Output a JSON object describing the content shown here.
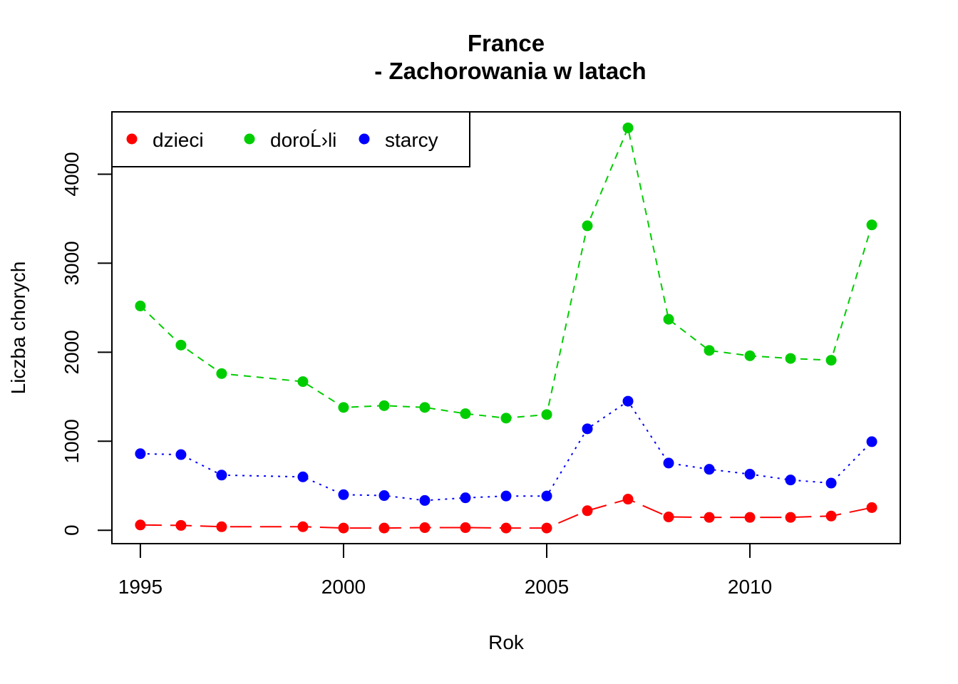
{
  "chart_data": {
    "type": "line",
    "title_line1": "France",
    "title_line2": "- Zachorowania w latach",
    "xlabel": "Rok",
    "ylabel": "Liczba chorych",
    "xlim": [
      1994.3,
      2013.7
    ],
    "ylim": [
      -150,
      4700
    ],
    "x_ticks": [
      1995,
      2000,
      2005,
      2010
    ],
    "y_ticks": [
      0,
      1000,
      2000,
      3000,
      4000
    ],
    "legend_position": "top-left",
    "x": [
      1995,
      1996,
      1997,
      1999,
      2000,
      2001,
      2002,
      2003,
      2004,
      2005,
      2006,
      2007,
      2008,
      2009,
      2010,
      2011,
      2012,
      2013
    ],
    "series": [
      {
        "name": "dzieci",
        "color": "#ff0000",
        "line_style": "dashed-long",
        "values": [
          60,
          55,
          40,
          40,
          25,
          25,
          30,
          30,
          25,
          25,
          220,
          350,
          150,
          145,
          145,
          145,
          160,
          255
        ]
      },
      {
        "name": "doroĹ›li",
        "color": "#00cd00",
        "line_style": "dashed",
        "values": [
          2520,
          2080,
          1760,
          1670,
          1380,
          1400,
          1380,
          1310,
          1260,
          1300,
          3420,
          4520,
          2370,
          2020,
          1960,
          1930,
          1910,
          3430
        ]
      },
      {
        "name": "starcy",
        "color": "#0000ff",
        "line_style": "dotted",
        "values": [
          860,
          850,
          620,
          600,
          400,
          390,
          335,
          365,
          385,
          385,
          1140,
          1450,
          755,
          685,
          630,
          565,
          530,
          995
        ]
      }
    ]
  }
}
